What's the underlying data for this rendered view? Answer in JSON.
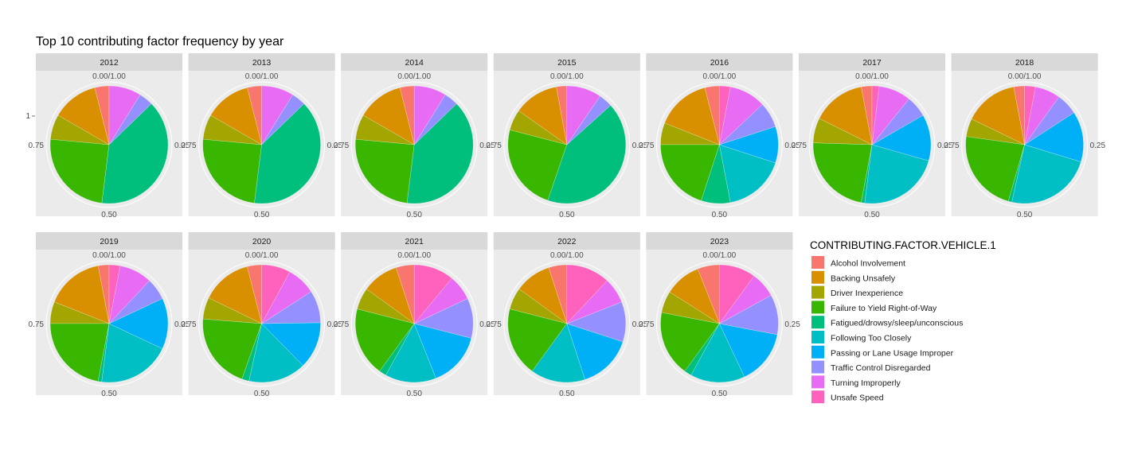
{
  "chart_data": {
    "type": "pie",
    "title": "Top 10 contributing factor frequency by year",
    "y_tick": "1",
    "angle_ticks": [
      "0.00/1.00",
      "0.25",
      "0.50",
      "0.75"
    ],
    "legend_title": "CONTRIBUTING.FACTOR.VEHICLE.1",
    "legend_position": "right",
    "categories": [
      "Alcohol Involvement",
      "Backing Unsafely",
      "Driver Inexperience",
      "Failure to Yield Right-of-Way",
      "Fatigued/drowsy/sleep/unconscious",
      "Following Too Closely",
      "Passing or Lane Usage Improper",
      "Traffic Control Disregarded",
      "Turning Improperly",
      "Unsafe Speed"
    ],
    "colors": [
      "#F8766D",
      "#D89000",
      "#A3A500",
      "#39B600",
      "#00BF7D",
      "#00BFC4",
      "#00B0F6",
      "#9590FF",
      "#E76BF3",
      "#FF62BC"
    ],
    "facets": [
      {
        "year": "2012",
        "values": [
          0.04,
          0.13,
          0.07,
          0.25,
          0.4,
          0.0,
          0.0,
          0.04,
          0.09,
          0.0
        ]
      },
      {
        "year": "2013",
        "values": [
          0.04,
          0.13,
          0.07,
          0.25,
          0.4,
          0.0,
          0.0,
          0.04,
          0.09,
          0.0
        ]
      },
      {
        "year": "2014",
        "values": [
          0.04,
          0.13,
          0.07,
          0.25,
          0.4,
          0.0,
          0.0,
          0.04,
          0.09,
          0.0
        ]
      },
      {
        "year": "2015",
        "values": [
          0.03,
          0.13,
          0.06,
          0.25,
          0.44,
          0.0,
          0.0,
          0.04,
          0.1,
          0.0
        ]
      },
      {
        "year": "2016",
        "values": [
          0.04,
          0.15,
          0.06,
          0.2,
          0.08,
          0.17,
          0.1,
          0.07,
          0.1,
          0.03
        ]
      },
      {
        "year": "2017",
        "values": [
          0.03,
          0.15,
          0.07,
          0.23,
          0.01,
          0.23,
          0.13,
          0.06,
          0.09,
          0.02
        ]
      },
      {
        "year": "2018",
        "values": [
          0.03,
          0.15,
          0.05,
          0.23,
          0.01,
          0.24,
          0.14,
          0.06,
          0.07,
          0.03
        ]
      },
      {
        "year": "2019",
        "values": [
          0.03,
          0.16,
          0.06,
          0.22,
          0.01,
          0.2,
          0.14,
          0.06,
          0.09,
          0.03
        ]
      },
      {
        "year": "2020",
        "values": [
          0.04,
          0.14,
          0.06,
          0.21,
          0.02,
          0.16,
          0.13,
          0.09,
          0.08,
          0.08
        ]
      },
      {
        "year": "2021",
        "values": [
          0.05,
          0.1,
          0.06,
          0.19,
          0.02,
          0.14,
          0.15,
          0.11,
          0.07,
          0.11
        ]
      },
      {
        "year": "2022",
        "values": [
          0.05,
          0.1,
          0.06,
          0.19,
          0.0,
          0.15,
          0.15,
          0.11,
          0.07,
          0.12
        ]
      },
      {
        "year": "2023",
        "values": [
          0.06,
          0.1,
          0.06,
          0.18,
          0.02,
          0.15,
          0.15,
          0.11,
          0.07,
          0.1
        ]
      }
    ]
  }
}
